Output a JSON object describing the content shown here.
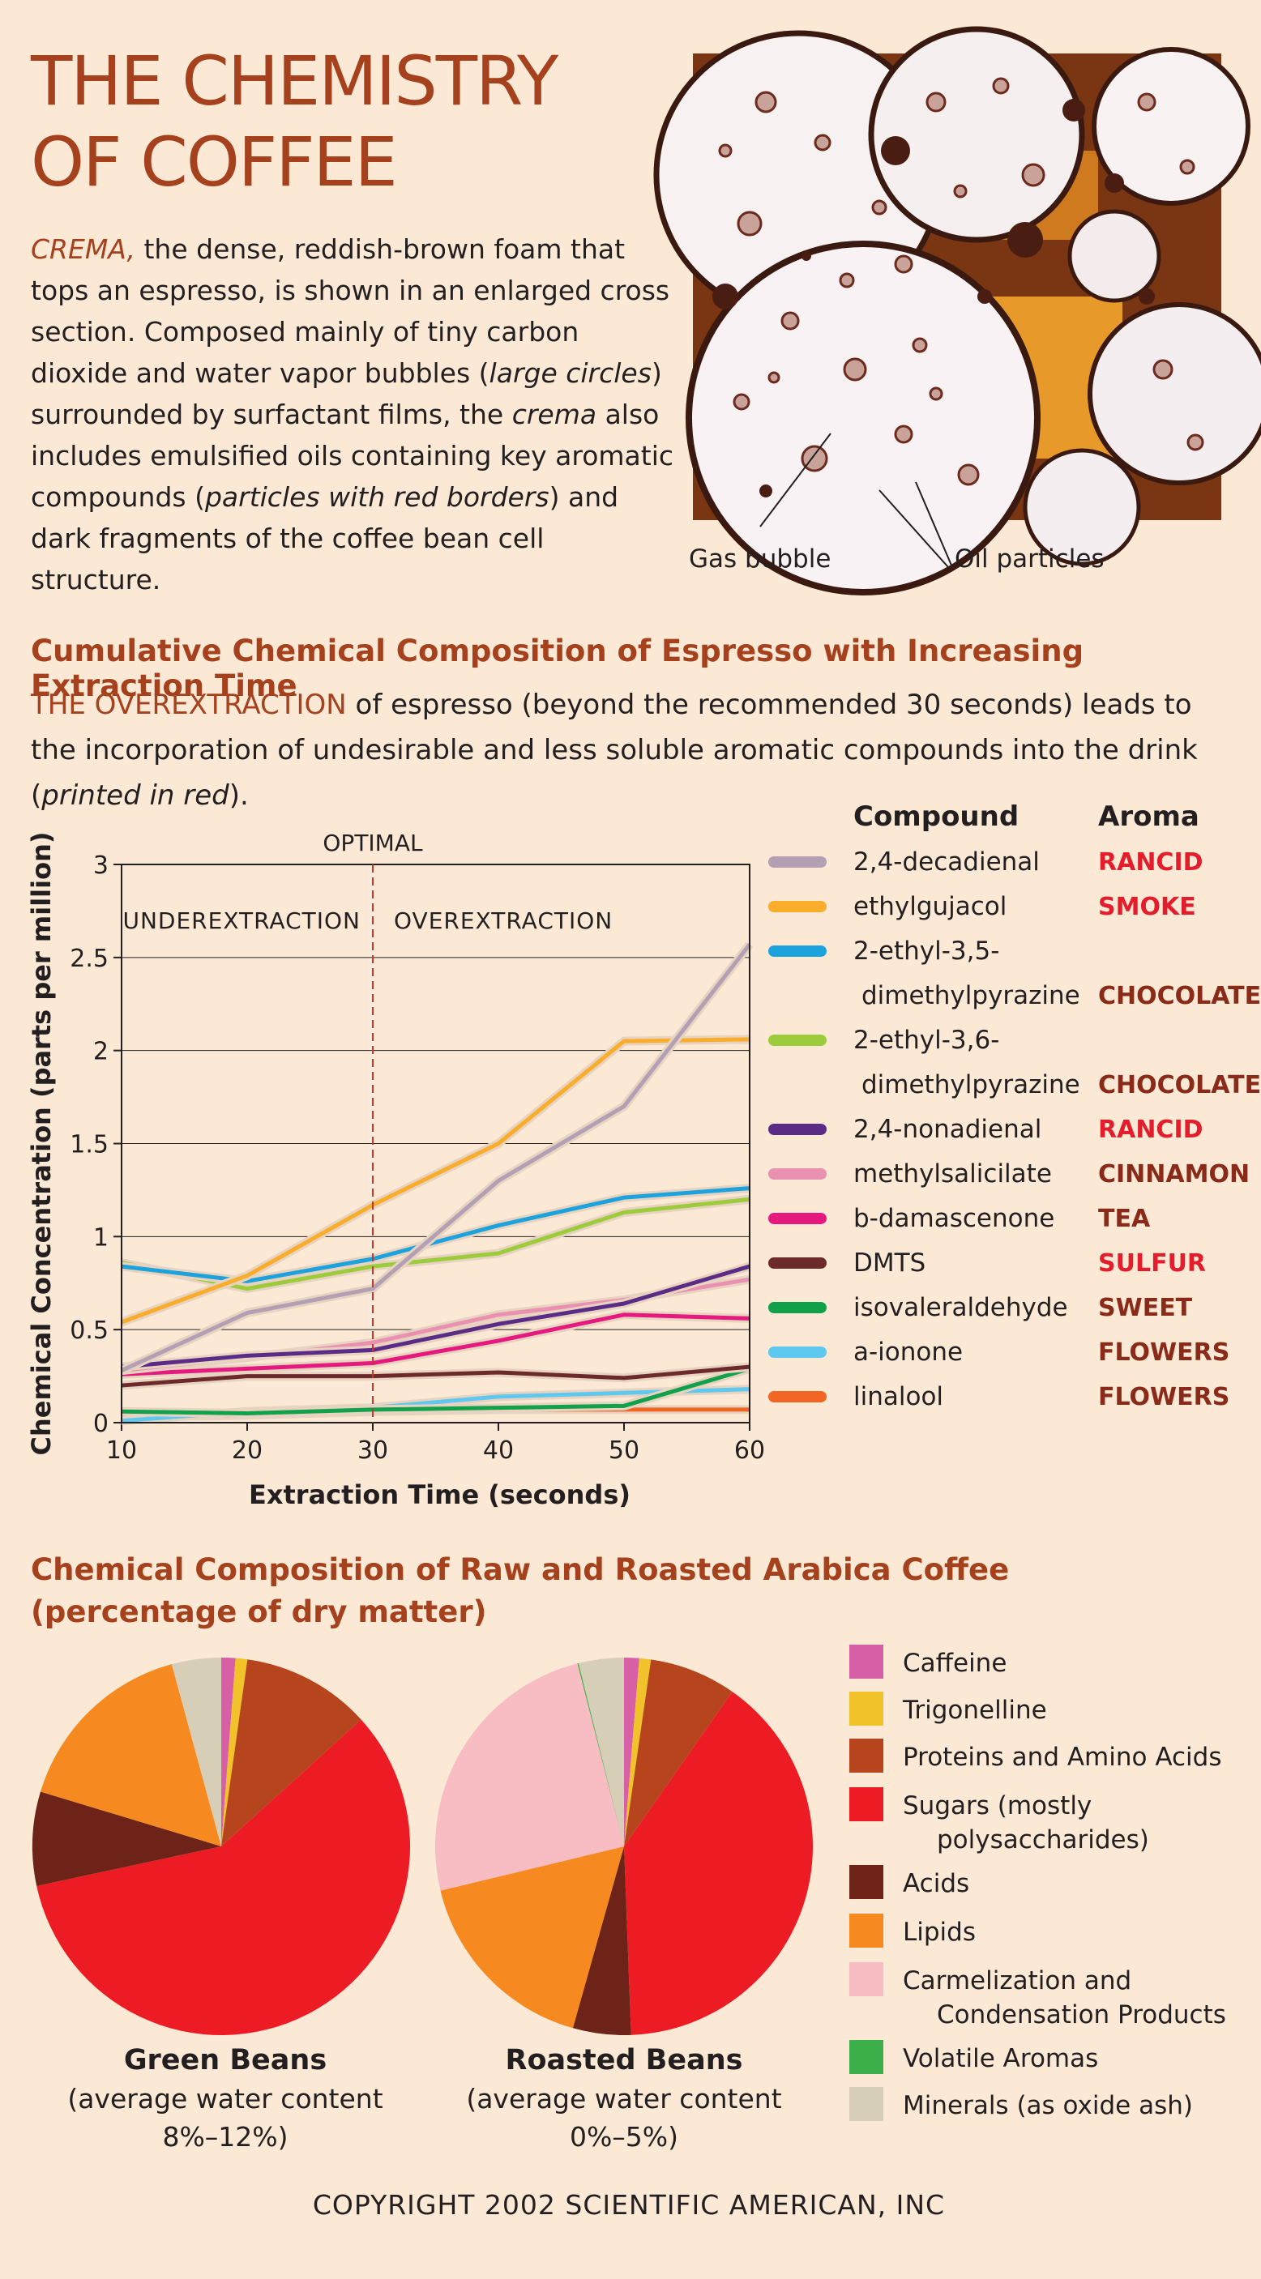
{
  "header": {
    "title_line1": "THE CHEMISTRY",
    "title_line2": "OF COFFEE"
  },
  "intro": {
    "lead": "CREMA,",
    "t1": " the dense, reddish-brown foam that tops an espresso, is shown in an enlarged cross section. Composed mainly of tiny carbon dioxide and water vapor bubbles (",
    "e1": "large circles",
    "t2": ") surrounded by surfactant films, the ",
    "e2": "crema",
    "t3": " also includes emulsified oils containing key aromatic compounds (",
    "e3": "particles with red borders",
    "t4": ") and dark fragments of the coffee bean cell structure."
  },
  "photo": {
    "callout_gas": "Gas bubble",
    "callout_oil": "Oil particles"
  },
  "section1": {
    "title": "Cumulative Chemical Composition of Espresso with Increasing Extraction Time",
    "lead": "THE OVEREXTRACTION",
    "t1": " of espresso (beyond the recommended 30 seconds) leads to the incorporation of undesirable and less soluble aromatic compounds into the drink (",
    "e1": "printed in red",
    "t2": ")."
  },
  "section2": {
    "title_line1": "Chemical Composition of Raw and Roasted Arabica Coffee",
    "title_line2": "(percentage of dry matter)"
  },
  "legend_headers": {
    "compound": "Compound",
    "aroma": "Aroma"
  },
  "copyright": "COPYRIGHT 2002 SCIENTIFIC AMERICAN, INC",
  "chart_data": [
    {
      "type": "line",
      "title": "Cumulative Chemical Composition of Espresso with Increasing Extraction Time",
      "xlabel": "Extraction Time (seconds)",
      "ylabel": "Chemical Concentration (parts per million)",
      "x": [
        10,
        20,
        30,
        40,
        50,
        60
      ],
      "xlim": [
        10,
        60
      ],
      "ylim": [
        0,
        3
      ],
      "xticks": [
        "10",
        "20",
        "30",
        "40",
        "50",
        "60"
      ],
      "yticks": [
        "0",
        "0.5",
        "1",
        "1.5",
        "2",
        "2.5",
        "3"
      ],
      "annotations": {
        "optimal": "OPTIMAL",
        "optimal_x": 30,
        "under": "UNDEREXTRACTION",
        "over": "OVEREXTRACTION"
      },
      "series": [
        {
          "name": "2,4-decadienal",
          "name2": "",
          "aroma": "RANCID",
          "undesirable": true,
          "color": "#b3a0b5",
          "values": [
            0.28,
            0.59,
            0.72,
            1.3,
            1.7,
            2.57
          ]
        },
        {
          "name": "ethylgujacol",
          "name2": "",
          "aroma": "SMOKE",
          "undesirable": true,
          "color": "#f9ad2a",
          "values": [
            0.54,
            0.79,
            1.17,
            1.5,
            2.05,
            2.06
          ]
        },
        {
          "name": "2-ethyl-3,5-",
          "name2": "dimethylpyrazine",
          "aroma": "CHOCOLATE",
          "undesirable": false,
          "color": "#1ca2dc",
          "values": [
            0.84,
            0.76,
            0.88,
            1.06,
            1.21,
            1.26
          ]
        },
        {
          "name": "2-ethyl-3,6-",
          "name2": "dimethylpyrazine",
          "aroma": "CHOCOLATE",
          "undesirable": false,
          "color": "#9ccb3b",
          "values": [
            0.86,
            0.72,
            0.84,
            0.91,
            1.13,
            1.2
          ]
        },
        {
          "name": "2,4-nonadienal",
          "name2": "",
          "aroma": "RANCID",
          "undesirable": true,
          "color": "#5b2c86",
          "values": [
            0.3,
            0.36,
            0.39,
            0.53,
            0.64,
            0.84
          ]
        },
        {
          "name": "methylsalicilate",
          "name2": "",
          "aroma": "CINNAMON",
          "undesirable": false,
          "color": "#ea90b1",
          "values": [
            0.28,
            0.35,
            0.43,
            0.58,
            0.66,
            0.77
          ]
        },
        {
          "name": "b-damascenone",
          "name2": "",
          "aroma": "TEA",
          "undesirable": false,
          "color": "#e6197e",
          "values": [
            0.26,
            0.29,
            0.32,
            0.44,
            0.58,
            0.56
          ]
        },
        {
          "name": "DMTS",
          "name2": "",
          "aroma": "SULFUR",
          "undesirable": true,
          "color": "#6d2a2b",
          "values": [
            0.2,
            0.25,
            0.25,
            0.27,
            0.24,
            0.3
          ]
        },
        {
          "name": "isovaleraldehyde",
          "name2": "",
          "aroma": "SWEET",
          "undesirable": false,
          "color": "#12a14b",
          "values": [
            0.06,
            0.05,
            0.07,
            0.08,
            0.09,
            0.29
          ]
        },
        {
          "name": "a-ionone",
          "name2": "",
          "aroma": "FLOWERS",
          "undesirable": false,
          "color": "#5fc8ef",
          "values": [
            0.01,
            0.06,
            0.08,
            0.14,
            0.16,
            0.18
          ]
        },
        {
          "name": "linalool",
          "name2": "",
          "aroma": "FLOWERS",
          "undesirable": false,
          "color": "#f26522",
          "values": [
            0.03,
            0.04,
            0.06,
            0.07,
            0.07,
            0.07
          ]
        }
      ]
    },
    {
      "type": "pie",
      "title": "Chemical Composition of Raw and Roasted Arabica Coffee (percentage of dry matter)",
      "categories": [
        "Caffeine",
        "Trigonelline",
        "Proteins and Amino Acids",
        "Sugars (mostly polysaccharides)",
        "Acids",
        "Lipids",
        "Carmelization and Condensation Products",
        "Volatile Aromas",
        "Minerals (as oxide ash)"
      ],
      "colors": [
        "#d65fa5",
        "#f2c22a",
        "#b6441d",
        "#ed1c24",
        "#6d2318",
        "#f6891f",
        "#f8bcc3",
        "#3cb04a",
        "#d7ceb7"
      ],
      "series": [
        {
          "name": "Green Beans",
          "caption1": "(average water content",
          "caption2": "8%–12%)",
          "values": [
            1.2,
            1,
            11,
            58,
            8,
            16,
            0,
            0,
            4.2
          ]
        },
        {
          "name": "Roasted Beans",
          "caption1": "(average water content",
          "caption2": "0%–5%)",
          "values": [
            1.3,
            1,
            7.5,
            40,
            5,
            17,
            25,
            0.1,
            3.9
          ]
        }
      ]
    }
  ]
}
